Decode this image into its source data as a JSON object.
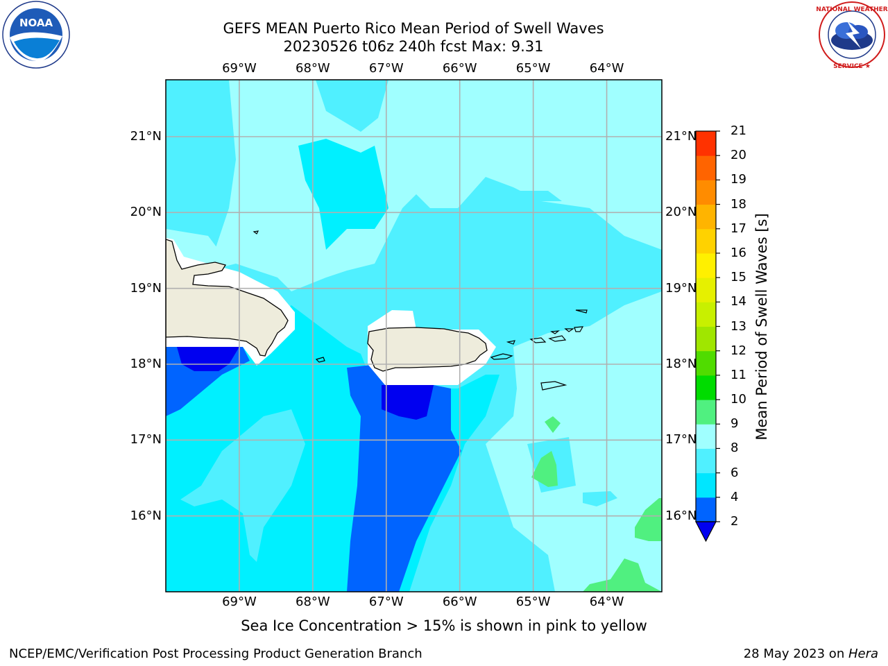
{
  "header": {
    "title_line1": "GEFS MEAN Puerto Rico Mean Period of Swell Waves",
    "title_line2": "20230526 t06z 240h fcst   Max: 9.31"
  },
  "logos": {
    "left": "noaa-logo",
    "right": "nws-logo"
  },
  "map": {
    "lon_labels": [
      "69°W",
      "68°W",
      "67°W",
      "66°W",
      "65°W",
      "64°W"
    ],
    "lat_labels": [
      "21°N",
      "20°N",
      "19°N",
      "18°N",
      "17°N",
      "16°N"
    ],
    "lon_values": [
      -69,
      -68,
      -67,
      -66,
      -65,
      -64
    ],
    "lat_values": [
      21,
      20,
      19,
      18,
      17,
      16
    ],
    "extent": {
      "lon_min": -70,
      "lon_max": -63.25,
      "lat_min": 15,
      "lat_max": 21.75
    },
    "land_color": "#eeecdc",
    "grid": true
  },
  "colorbar": {
    "label": "Mean Period of Swell Waves [s]",
    "ticks": [
      "2",
      "4",
      "6",
      "8",
      "9",
      "10",
      "11",
      "12",
      "13",
      "14",
      "15",
      "16",
      "17",
      "18",
      "19",
      "20",
      "21"
    ],
    "colors": [
      "#0064ff",
      "#00e6ff",
      "#50f0ff",
      "#a0ffff",
      "#50f080",
      "#00dc00",
      "#50dc00",
      "#a0e600",
      "#c8f000",
      "#e6f000",
      "#fff000",
      "#ffd200",
      "#ffb400",
      "#ff8c00",
      "#ff6400",
      "#ff3200",
      "#ff0000"
    ],
    "under_color": "#0000f0"
  },
  "footer": {
    "footnote": "Sea Ice Concentration > 15% is shown in pink to yellow",
    "credit": "NCEP/EMC/Verification Post Processing Product Generation Branch",
    "date": "28 May 2023 on ",
    "host": "Hera"
  }
}
